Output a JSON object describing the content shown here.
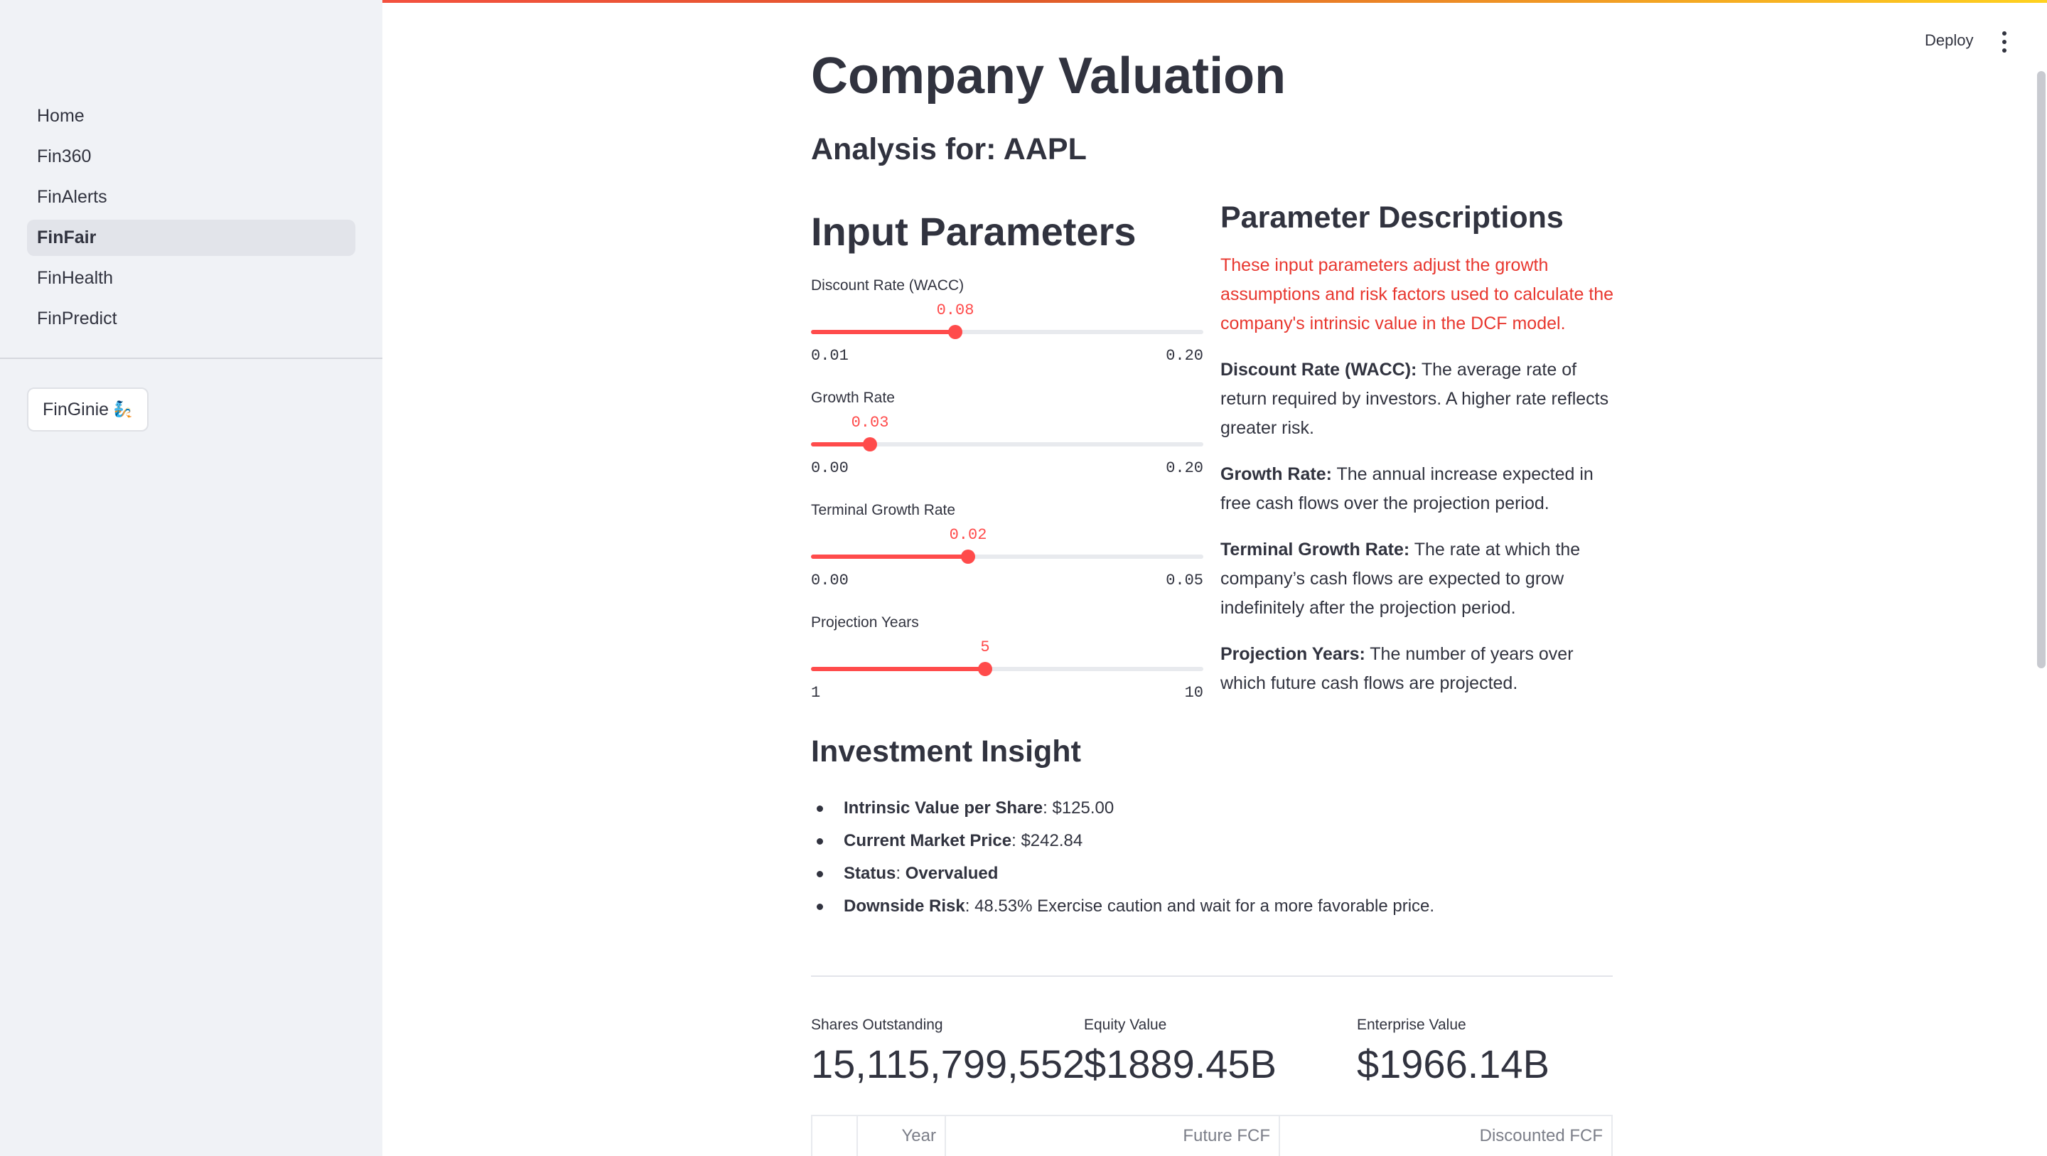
{
  "sidebar": {
    "nav": [
      "Home",
      "Fin360",
      "FinAlerts",
      "FinFair",
      "FinHealth",
      "FinPredict"
    ],
    "active": "FinFair",
    "button_label": "FinGinie",
    "button_icon": "genie-icon"
  },
  "header": {
    "deploy_label": "Deploy",
    "menu_icon": "kebab-menu-icon"
  },
  "page": {
    "title": "Company Valuation",
    "subtitle": "Analysis for: AAPL"
  },
  "inputs": {
    "heading": "Input Parameters",
    "sliders": [
      {
        "label": "Discount Rate (WACC)",
        "value": "0.08",
        "min": "0.01",
        "max": "0.20",
        "fraction": 0.368
      },
      {
        "label": "Growth Rate",
        "value": "0.03",
        "min": "0.00",
        "max": "0.20",
        "fraction": 0.15
      },
      {
        "label": "Terminal Growth Rate",
        "value": "0.02",
        "min": "0.00",
        "max": "0.05",
        "fraction": 0.4
      },
      {
        "label": "Projection Years",
        "value": "5",
        "min": "1",
        "max": "10",
        "fraction": 0.444
      }
    ]
  },
  "descriptions": {
    "heading": "Parameter Descriptions",
    "intro": "These input parameters adjust the growth assumptions and risk factors used to calculate the company's intrinsic value in the DCF model.",
    "items": [
      {
        "term": "Discount Rate (WACC):",
        "text": " The average rate of return required by investors. A higher rate reflects greater risk."
      },
      {
        "term": "Growth Rate:",
        "text": " The annual increase expected in free cash flows over the projection period."
      },
      {
        "term": "Terminal Growth Rate:",
        "text": " The rate at which the company’s cash flows are expected to grow indefinitely after the projection period."
      },
      {
        "term": "Projection Years:",
        "text": " The number of years over which future cash flows are projected."
      }
    ]
  },
  "insight": {
    "heading": "Investment Insight",
    "items": [
      {
        "label": "Intrinsic Value per Share",
        "sep": ": ",
        "value": "$125.00"
      },
      {
        "label": "Current Market Price",
        "sep": ": ",
        "value": "$242.84"
      },
      {
        "label": "Status",
        "sep": ": ",
        "value": "Overvalued",
        "value_bold": true
      },
      {
        "label": "Downside Risk",
        "sep": ": ",
        "value": "48.53% Exercise caution and wait for a more favorable price."
      }
    ]
  },
  "metrics": [
    {
      "label": "Shares Outstanding",
      "value": "15,115,799,552"
    },
    {
      "label": "Equity Value",
      "value": "$1889.45B"
    },
    {
      "label": "Enterprise Value",
      "value": "$1966.14B"
    }
  ],
  "table": {
    "columns": [
      "",
      "Year",
      "Future FCF",
      "Discounted FCF"
    ]
  },
  "colors": {
    "accent": "#ff4b4b",
    "intro_text": "#e8372f",
    "sidebar_bg": "#f0f2f6"
  }
}
